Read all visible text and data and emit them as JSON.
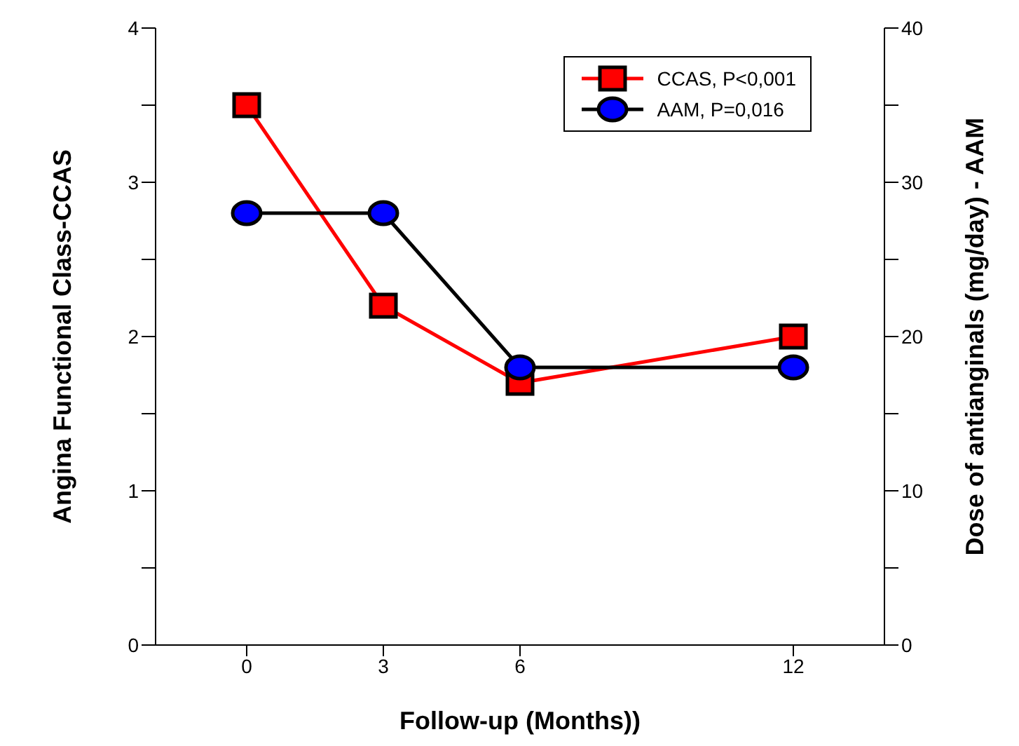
{
  "chart_data": {
    "type": "line",
    "xlabel": "Follow-up (Months))",
    "ylabel": "Angina Functional Class-CCAS",
    "y2label": "Dose of antianginals (mg/day) - AAM",
    "x": [
      0,
      3,
      6,
      12
    ],
    "xlim": [
      -2,
      14
    ],
    "xticks": [
      0,
      3,
      6,
      12
    ],
    "ylim": [
      0,
      4
    ],
    "yticks": [
      0,
      {
        "value": 0.5,
        "label": null
      },
      1,
      {
        "value": 1.5,
        "label": null
      },
      2,
      {
        "value": 2.5,
        "label": null
      },
      3,
      {
        "value": 3.5,
        "label": null
      },
      4
    ],
    "y2lim": [
      0,
      40
    ],
    "y2ticks": [
      0,
      {
        "value": 5,
        "label": null
      },
      10,
      {
        "value": 15,
        "label": null
      },
      20,
      {
        "value": 25,
        "label": null
      },
      30,
      {
        "value": 35,
        "label": null
      },
      40
    ],
    "legend": "top right",
    "grid": false,
    "line_style": "solid",
    "series": [
      {
        "name": "CCAS, P<0,001",
        "color": "#ff0000",
        "marker": "square",
        "values": [
          3.5,
          2.2,
          1.7,
          2.0
        ]
      },
      {
        "name": "AAM, P=0,016",
        "color": "#000000",
        "colors": [
          "#0000ff",
          "#0000ff",
          "#0000ff",
          "#0000ff"
        ],
        "marker": "circle",
        "axis": "y2",
        "values": [
          28,
          28,
          18,
          18
        ]
      }
    ]
  }
}
